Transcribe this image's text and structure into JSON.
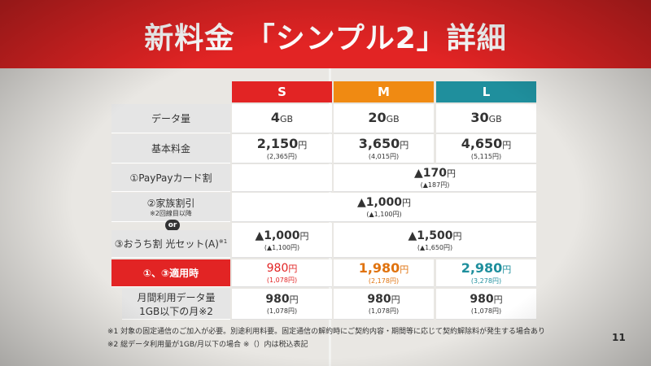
{
  "title": "新料金 「シンプル2」詳細",
  "plans": [
    "S",
    "M",
    "L"
  ],
  "rows": {
    "data": {
      "label": "データ量",
      "values": [
        "4",
        "20",
        "30"
      ],
      "unit": "GB"
    },
    "base": {
      "label": "基本料金",
      "values": [
        "2,150",
        "3,650",
        "4,650"
      ],
      "tax": [
        "(2,365円)",
        "(4,015円)",
        "(5,115円)"
      ]
    },
    "paypay": {
      "label": "①PayPayカード割",
      "value": "▲170",
      "tax": "(▲187円)"
    },
    "family": {
      "label": "②家族割引",
      "sublabel": "※2回線目以降",
      "value": "▲1,000",
      "tax": "(▲1,100円)"
    },
    "or": "or",
    "hikari": {
      "label": "③おうち割 光セット(A)",
      "note": "※1",
      "value_s": "▲1,000",
      "tax_s": "(▲1,100円)",
      "value_ml": "▲1,500",
      "tax_ml": "(▲1,650円)"
    },
    "applied": {
      "label": "①、③適用時",
      "values": [
        "980",
        "1,980",
        "2,980"
      ],
      "tax": [
        "(1,078円)",
        "(2,178円)",
        "(3,278円)"
      ]
    },
    "lowuse": {
      "label1": "月間利用データ量",
      "label2": "1GB以下の月※2",
      "values": [
        "980",
        "980",
        "980"
      ],
      "tax": [
        "(1,078円)",
        "(1,078円)",
        "(1,078円)"
      ]
    }
  },
  "yen": "円",
  "notes": [
    "※1 対象の固定通信のご加入が必要。別途利用料要。固定通信の解約時にご契約内容・期間等に応じて契約解除料が発生する場合あり",
    "※2 総データ利用量が1GB/月以下の場合 ※（）内は税込表記"
  ],
  "page_number": "11",
  "colors": {
    "red": "#e22424",
    "orange": "#f08a12",
    "teal": "#1f8f9d"
  }
}
